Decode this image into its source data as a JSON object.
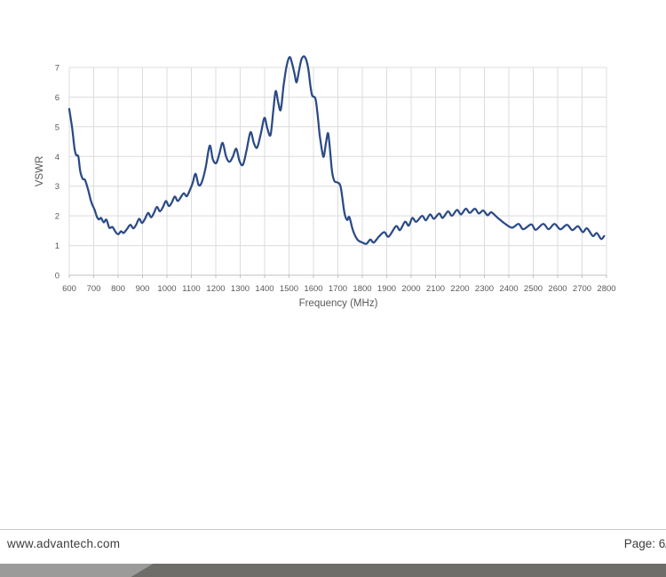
{
  "footer": {
    "website": "www.advantech.com",
    "page_label": "Page: 6/"
  },
  "colors": {
    "line": "#2b4a86",
    "grid": "#dcdcdc",
    "axis": "#bfbfbf",
    "tick_text": "#595959",
    "axis_title_text": "#595959",
    "footer_text": "#3d3d3d",
    "footer_rule": "#c9c9c9",
    "bar_light": "#9b9b99",
    "bar_dark": "#6f6d6a"
  },
  "chart_data": {
    "type": "line",
    "title": "",
    "xlabel": "Frequency (MHz)",
    "ylabel": "VSWR",
    "xlim": [
      600,
      2800
    ],
    "ylim": [
      0,
      7
    ],
    "grid": true,
    "legend": false,
    "smooth": true,
    "x_ticks": [
      600,
      700,
      800,
      900,
      1000,
      1100,
      1200,
      1300,
      1400,
      1500,
      1600,
      1700,
      1800,
      1900,
      2000,
      2100,
      2200,
      2300,
      2400,
      2500,
      2600,
      2700,
      2800
    ],
    "y_ticks": [
      0,
      1,
      2,
      3,
      4,
      5,
      6,
      7
    ],
    "series": [
      {
        "name": "VSWR",
        "color": "#2b4a86",
        "points": [
          [
            600,
            5.6
          ],
          [
            612,
            4.95
          ],
          [
            621,
            4.3
          ],
          [
            628,
            4.05
          ],
          [
            637,
            4.0
          ],
          [
            645,
            3.5
          ],
          [
            655,
            3.25
          ],
          [
            665,
            3.2
          ],
          [
            678,
            2.85
          ],
          [
            691,
            2.45
          ],
          [
            704,
            2.2
          ],
          [
            713,
            1.97
          ],
          [
            722,
            1.88
          ],
          [
            730,
            1.93
          ],
          [
            741,
            1.78
          ],
          [
            752,
            1.87
          ],
          [
            764,
            1.6
          ],
          [
            777,
            1.62
          ],
          [
            790,
            1.45
          ],
          [
            801,
            1.38
          ],
          [
            812,
            1.48
          ],
          [
            822,
            1.42
          ],
          [
            836,
            1.55
          ],
          [
            850,
            1.7
          ],
          [
            862,
            1.58
          ],
          [
            874,
            1.7
          ],
          [
            886,
            1.9
          ],
          [
            898,
            1.76
          ],
          [
            910,
            1.9
          ],
          [
            923,
            2.1
          ],
          [
            935,
            1.95
          ],
          [
            947,
            2.1
          ],
          [
            959,
            2.3
          ],
          [
            971,
            2.15
          ],
          [
            984,
            2.3
          ],
          [
            996,
            2.5
          ],
          [
            1008,
            2.33
          ],
          [
            1020,
            2.45
          ],
          [
            1032,
            2.65
          ],
          [
            1044,
            2.5
          ],
          [
            1056,
            2.62
          ],
          [
            1069,
            2.76
          ],
          [
            1081,
            2.66
          ],
          [
            1093,
            2.85
          ],
          [
            1105,
            3.1
          ],
          [
            1117,
            3.42
          ],
          [
            1129,
            3.05
          ],
          [
            1141,
            3.1
          ],
          [
            1158,
            3.6
          ],
          [
            1175,
            4.36
          ],
          [
            1188,
            3.9
          ],
          [
            1202,
            3.78
          ],
          [
            1215,
            4.1
          ],
          [
            1228,
            4.46
          ],
          [
            1242,
            4.0
          ],
          [
            1256,
            3.82
          ],
          [
            1270,
            4.0
          ],
          [
            1284,
            4.26
          ],
          [
            1297,
            3.85
          ],
          [
            1311,
            3.72
          ],
          [
            1326,
            4.2
          ],
          [
            1342,
            4.82
          ],
          [
            1356,
            4.45
          ],
          [
            1369,
            4.3
          ],
          [
            1384,
            4.75
          ],
          [
            1399,
            5.3
          ],
          [
            1411,
            4.95
          ],
          [
            1424,
            4.72
          ],
          [
            1435,
            5.5
          ],
          [
            1445,
            6.2
          ],
          [
            1455,
            5.85
          ],
          [
            1466,
            5.57
          ],
          [
            1478,
            6.4
          ],
          [
            1490,
            7.05
          ],
          [
            1502,
            7.35
          ],
          [
            1512,
            7.15
          ],
          [
            1522,
            6.8
          ],
          [
            1531,
            6.5
          ],
          [
            1541,
            6.9
          ],
          [
            1552,
            7.3
          ],
          [
            1565,
            7.35
          ],
          [
            1578,
            7.0
          ],
          [
            1588,
            6.35
          ],
          [
            1595,
            6.05
          ],
          [
            1608,
            5.95
          ],
          [
            1617,
            5.4
          ],
          [
            1626,
            4.7
          ],
          [
            1637,
            4.1
          ],
          [
            1643,
            4.02
          ],
          [
            1652,
            4.5
          ],
          [
            1660,
            4.78
          ],
          [
            1668,
            4.2
          ],
          [
            1676,
            3.5
          ],
          [
            1686,
            3.17
          ],
          [
            1700,
            3.12
          ],
          [
            1712,
            2.95
          ],
          [
            1727,
            2.1
          ],
          [
            1738,
            1.86
          ],
          [
            1747,
            1.96
          ],
          [
            1762,
            1.5
          ],
          [
            1780,
            1.2
          ],
          [
            1800,
            1.1
          ],
          [
            1817,
            1.06
          ],
          [
            1833,
            1.2
          ],
          [
            1847,
            1.1
          ],
          [
            1868,
            1.3
          ],
          [
            1890,
            1.45
          ],
          [
            1908,
            1.3
          ],
          [
            1938,
            1.65
          ],
          [
            1954,
            1.52
          ],
          [
            1975,
            1.8
          ],
          [
            1990,
            1.67
          ],
          [
            2005,
            1.93
          ],
          [
            2021,
            1.8
          ],
          [
            2045,
            2.0
          ],
          [
            2060,
            1.85
          ],
          [
            2078,
            2.05
          ],
          [
            2093,
            1.9
          ],
          [
            2115,
            2.08
          ],
          [
            2129,
            1.93
          ],
          [
            2151,
            2.15
          ],
          [
            2167,
            2.0
          ],
          [
            2188,
            2.2
          ],
          [
            2204,
            2.05
          ],
          [
            2224,
            2.24
          ],
          [
            2240,
            2.1
          ],
          [
            2261,
            2.24
          ],
          [
            2277,
            2.08
          ],
          [
            2295,
            2.18
          ],
          [
            2313,
            2.02
          ],
          [
            2328,
            2.12
          ],
          [
            2352,
            1.95
          ],
          [
            2382,
            1.75
          ],
          [
            2413,
            1.6
          ],
          [
            2440,
            1.73
          ],
          [
            2459,
            1.55
          ],
          [
            2492,
            1.71
          ],
          [
            2510,
            1.53
          ],
          [
            2541,
            1.73
          ],
          [
            2563,
            1.55
          ],
          [
            2587,
            1.73
          ],
          [
            2611,
            1.55
          ],
          [
            2638,
            1.7
          ],
          [
            2660,
            1.52
          ],
          [
            2683,
            1.65
          ],
          [
            2703,
            1.45
          ],
          [
            2720,
            1.58
          ],
          [
            2744,
            1.32
          ],
          [
            2760,
            1.42
          ],
          [
            2778,
            1.22
          ],
          [
            2790,
            1.32
          ]
        ]
      }
    ]
  }
}
